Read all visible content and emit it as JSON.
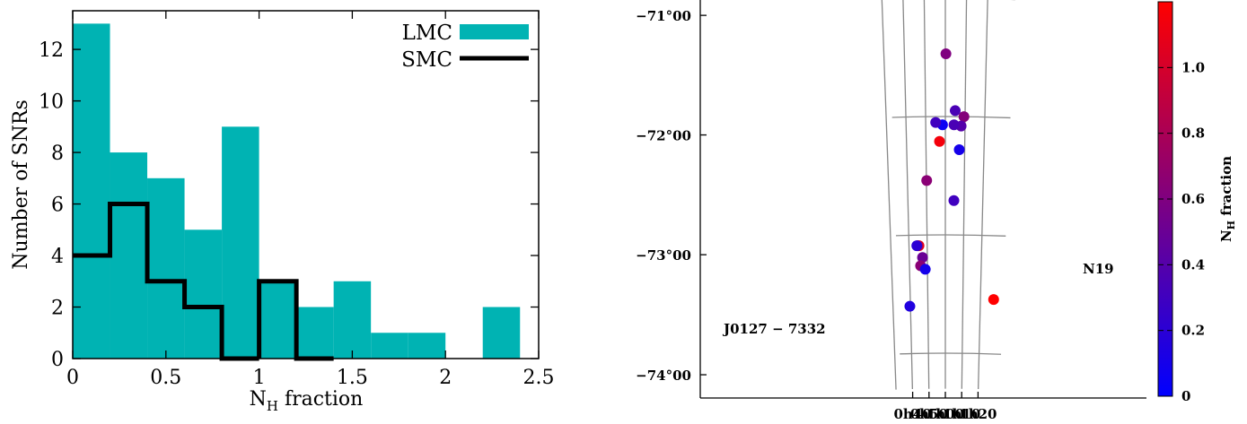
{
  "chart_data": [
    {
      "type": "histogram",
      "xlabel_main": "N",
      "xlabel_sub": "H",
      "xlabel_rest": " fraction",
      "ylabel": "Number of SNRs",
      "xlim": [
        0,
        2.5
      ],
      "ylim": [
        0,
        13.5
      ],
      "xticks": [
        "0",
        "0.5",
        "1",
        "1.5",
        "2",
        "2.5"
      ],
      "yticks": [
        "0",
        "2",
        "4",
        "6",
        "8",
        "10",
        "12"
      ],
      "bin_edges": [
        0,
        0.2,
        0.4,
        0.6,
        0.8,
        1.0,
        1.2,
        1.4,
        1.6,
        1.8,
        2.0,
        2.2,
        2.4
      ],
      "legend_position": "top-right",
      "series": [
        {
          "name": "LMC",
          "style": "filled",
          "color": "#00b3b3",
          "values": [
            13,
            8,
            7,
            5,
            9,
            3,
            2,
            3,
            1,
            1,
            0,
            2
          ]
        },
        {
          "name": "SMC",
          "style": "step",
          "color": "#000000",
          "values": [
            4,
            6,
            3,
            2,
            0,
            3,
            0,
            0,
            0,
            0,
            0,
            0
          ]
        }
      ]
    },
    {
      "type": "scatter",
      "subtype": "sky-map",
      "x_ticks": [
        "1h20",
        "1h10",
        "1h00",
        "0h50",
        "0h40"
      ],
      "y_ticks": [
        "−71°00",
        "−72°00",
        "−73°00",
        "−74°00"
      ],
      "colorbar": {
        "label_main": "N",
        "label_sub": "H",
        "label_rest": " fraction",
        "ticks": [
          "0",
          "0.2",
          "0.4",
          "0.6",
          "0.8",
          "1.0"
        ],
        "range": [
          0,
          1.2
        ],
        "colors": [
          "#0000ff",
          "#ff0000"
        ]
      },
      "points": [
        {
          "ra_h": 1.0045,
          "dec": -71.47,
          "value": 0.6
        },
        {
          "ra_h": 1.157,
          "dec": -72.0,
          "value": 0.62
        },
        {
          "ra_h": 1.083,
          "dec": -71.95,
          "value": 0.35
        },
        {
          "ra_h": 1.134,
          "dec": -72.08,
          "value": 0.4
        },
        {
          "ra_h": 1.0735,
          "dec": -72.07,
          "value": 0.35
        },
        {
          "ra_h": 0.976,
          "dec": -72.07,
          "value": 0.05
        },
        {
          "ra_h": 0.918,
          "dec": -72.05,
          "value": 0.3
        },
        {
          "ra_h": 0.95,
          "dec": -72.21,
          "value": 1.15
        },
        {
          "ra_h": 1.12,
          "dec": -72.28,
          "value": 0.1
        },
        {
          "ra_h": 1.076,
          "dec": -72.71,
          "value": 0.3
        },
        {
          "ra_h": 0.836,
          "dec": -72.54,
          "value": 0.65
        },
        {
          "ra_h": 0.758,
          "dec": -73.09,
          "value": 1.1
        },
        {
          "ra_h": 0.747,
          "dec": -73.09,
          "value": 0.9
        },
        {
          "ra_h": 0.7385,
          "dec": -73.09,
          "value": 0.2
        },
        {
          "ra_h": 0.789,
          "dec": -73.19,
          "value": 0.5
        },
        {
          "ra_h": 0.77,
          "dec": -73.26,
          "value": 0.65
        },
        {
          "ra_h": 0.813,
          "dec": -73.29,
          "value": 0.1
        },
        {
          "ra_h": 0.661,
          "dec": -73.6,
          "value": 0.15
        },
        {
          "ra_h": 1.459,
          "dec": -73.54,
          "value": 1.2
        }
      ],
      "annotations": [
        {
          "text": "N19"
        },
        {
          "text": "J0127 − 7332"
        }
      ]
    }
  ]
}
